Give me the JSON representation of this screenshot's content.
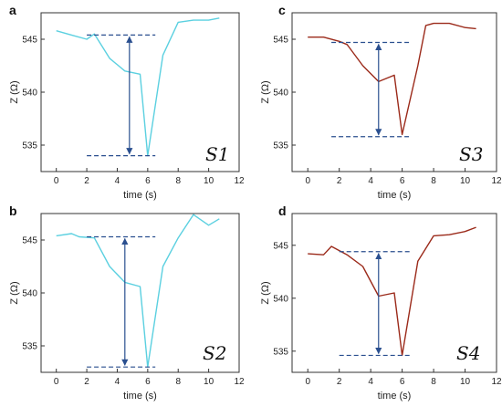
{
  "chart_data": [
    {
      "type": "line",
      "panel_label": "a",
      "sample_label": "S1",
      "xlabel": "time (s)",
      "ylabel": "Z (Ω)",
      "xlim": [
        -1,
        12
      ],
      "ylim": [
        532.5,
        547.5
      ],
      "xticks": [
        "0",
        "2",
        "4",
        "6",
        "8",
        "10",
        "12"
      ],
      "yticks": [
        "535",
        "540",
        "545"
      ],
      "series": [
        {
          "color": "#5bd0e0",
          "x": [
            0,
            1,
            2,
            2.5,
            3.5,
            4.5,
            5.5,
            6.0,
            7.0,
            8.0,
            9.0,
            10.0,
            10.7
          ],
          "y": [
            545.8,
            545.4,
            545.0,
            545.5,
            543.2,
            542.0,
            541.7,
            534.0,
            543.5,
            546.6,
            546.8,
            546.8,
            547.0
          ]
        }
      ],
      "reference_lines": {
        "top": 545.4,
        "bottom": 534.0,
        "x_start": 2.0,
        "x_end": 6.5,
        "arrow_x": 4.8
      }
    },
    {
      "type": "line",
      "panel_label": "c",
      "sample_label": "S3",
      "xlabel": "time (s)",
      "ylabel": "Z (Ω)",
      "xlim": [
        -1,
        12
      ],
      "ylim": [
        532.5,
        547.5
      ],
      "xticks": [
        "0",
        "2",
        "4",
        "6",
        "8",
        "10",
        "12"
      ],
      "yticks": [
        "535",
        "540",
        "545"
      ],
      "series": [
        {
          "color": "#9b2a1a",
          "x": [
            0,
            1,
            2,
            2.5,
            3.5,
            4.5,
            5.5,
            6.0,
            7.0,
            7.5,
            8.0,
            9.0,
            10.0,
            10.7
          ],
          "y": [
            545.2,
            545.2,
            544.8,
            544.5,
            542.5,
            541.0,
            541.6,
            536.0,
            542.5,
            546.3,
            546.5,
            546.5,
            546.1,
            546.0
          ]
        }
      ],
      "reference_lines": {
        "top": 544.7,
        "bottom": 535.8,
        "x_start": 1.5,
        "x_end": 6.5,
        "arrow_x": 4.5
      }
    },
    {
      "type": "line",
      "panel_label": "b",
      "sample_label": "S2",
      "xlabel": "time (s)",
      "ylabel": "Z (Ω)",
      "xlim": [
        -1,
        12
      ],
      "ylim": [
        532.5,
        547.5
      ],
      "xticks": [
        "0",
        "2",
        "4",
        "6",
        "8",
        "10",
        "12"
      ],
      "yticks": [
        "535",
        "540",
        "545"
      ],
      "series": [
        {
          "color": "#5bd0e0",
          "x": [
            0,
            1,
            1.5,
            2.5,
            3.5,
            4.5,
            5.5,
            6.0,
            7.0,
            8.0,
            9.0,
            10.0,
            10.7
          ],
          "y": [
            545.4,
            545.6,
            545.3,
            545.2,
            542.5,
            541.0,
            540.6,
            533.0,
            542.5,
            545.2,
            547.4,
            546.4,
            547.0
          ]
        }
      ],
      "reference_lines": {
        "top": 545.3,
        "bottom": 533.0,
        "x_start": 2.0,
        "x_end": 6.5,
        "arrow_x": 4.5
      }
    },
    {
      "type": "line",
      "panel_label": "d",
      "sample_label": "S4",
      "xlabel": "time (s)",
      "ylabel": "Z (Ω)",
      "xlim": [
        -1,
        12
      ],
      "ylim": [
        533.0,
        548.0
      ],
      "xticks": [
        "0",
        "2",
        "4",
        "6",
        "8",
        "10",
        "12"
      ],
      "yticks": [
        "535",
        "540",
        "545"
      ],
      "series": [
        {
          "color": "#9b2a1a",
          "x": [
            0,
            1,
            1.5,
            2.5,
            3.5,
            4.5,
            5.5,
            6.0,
            7.0,
            8.0,
            9.0,
            10.0,
            10.7
          ],
          "y": [
            544.2,
            544.1,
            544.9,
            544.1,
            543.0,
            540.2,
            540.5,
            534.6,
            543.5,
            545.9,
            546.0,
            546.3,
            546.7
          ]
        }
      ],
      "reference_lines": {
        "top": 544.4,
        "bottom": 534.6,
        "x_start": 2.0,
        "x_end": 6.5,
        "arrow_x": 4.5
      }
    }
  ]
}
